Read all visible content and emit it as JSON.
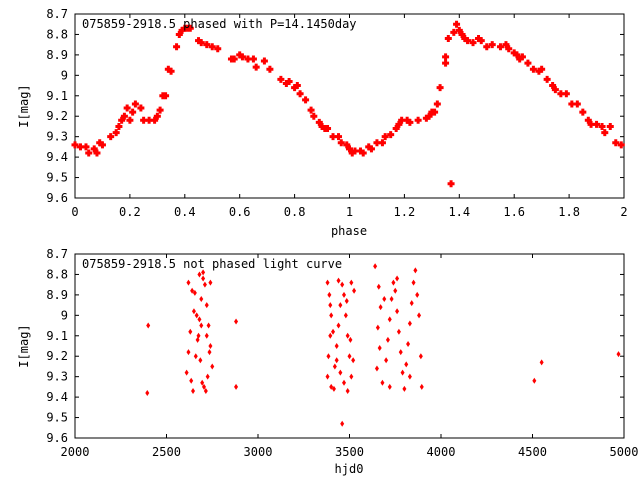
{
  "chart_data": [
    {
      "type": "scatter",
      "title": "075859-2918.5 phased with P=14.1450day",
      "xlabel": "phase",
      "ylabel": "I[mag]",
      "xlim": [
        0,
        2
      ],
      "ylim": [
        8.7,
        9.6
      ],
      "y_inverted": true,
      "x_ticks": [
        "0",
        "0.2",
        "0.4",
        "0.6",
        "0.8",
        "1",
        "1.2",
        "1.4",
        "1.6",
        "1.8",
        "2"
      ],
      "y_ticks": [
        "8.7",
        "8.8",
        "8.9",
        "9",
        "9.1",
        "9.2",
        "9.3",
        "9.4",
        "9.5",
        "9.6"
      ],
      "marker_color": "#ff0000",
      "grid": false,
      "points": [
        [
          0.0,
          9.34
        ],
        [
          0.02,
          9.35
        ],
        [
          0.04,
          9.35
        ],
        [
          0.05,
          9.38
        ],
        [
          0.07,
          9.36
        ],
        [
          0.08,
          9.38
        ],
        [
          0.09,
          9.33
        ],
        [
          0.1,
          9.34
        ],
        [
          0.13,
          9.3
        ],
        [
          0.15,
          9.28
        ],
        [
          0.16,
          9.25
        ],
        [
          0.17,
          9.22
        ],
        [
          0.18,
          9.2
        ],
        [
          0.19,
          9.16
        ],
        [
          0.2,
          9.22
        ],
        [
          0.21,
          9.18
        ],
        [
          0.22,
          9.14
        ],
        [
          0.24,
          9.16
        ],
        [
          0.25,
          9.22
        ],
        [
          0.27,
          9.22
        ],
        [
          0.29,
          9.22
        ],
        [
          0.3,
          9.2
        ],
        [
          0.31,
          9.17
        ],
        [
          0.32,
          9.1
        ],
        [
          0.33,
          9.1
        ],
        [
          0.34,
          8.97
        ],
        [
          0.35,
          8.98
        ],
        [
          0.37,
          8.86
        ],
        [
          0.38,
          8.8
        ],
        [
          0.39,
          8.78
        ],
        [
          0.4,
          8.77
        ],
        [
          0.41,
          8.77
        ],
        [
          0.42,
          8.77
        ],
        [
          0.45,
          8.83
        ],
        [
          0.46,
          8.84
        ],
        [
          0.48,
          8.85
        ],
        [
          0.5,
          8.86
        ],
        [
          0.52,
          8.87
        ],
        [
          0.57,
          8.92
        ],
        [
          0.58,
          8.92
        ],
        [
          0.6,
          8.9
        ],
        [
          0.61,
          8.91
        ],
        [
          0.63,
          8.92
        ],
        [
          0.65,
          8.92
        ],
        [
          0.66,
          8.96
        ],
        [
          0.69,
          8.93
        ],
        [
          0.71,
          8.97
        ],
        [
          0.75,
          9.02
        ],
        [
          0.77,
          9.04
        ],
        [
          0.78,
          9.03
        ],
        [
          0.8,
          9.06
        ],
        [
          0.81,
          9.05
        ],
        [
          0.82,
          9.09
        ],
        [
          0.84,
          9.12
        ],
        [
          0.86,
          9.17
        ],
        [
          0.87,
          9.2
        ],
        [
          0.89,
          9.23
        ],
        [
          0.9,
          9.25
        ],
        [
          0.91,
          9.26
        ],
        [
          0.92,
          9.26
        ],
        [
          0.94,
          9.3
        ],
        [
          0.96,
          9.3
        ],
        [
          0.97,
          9.33
        ],
        [
          0.99,
          9.34
        ],
        [
          1.0,
          9.36
        ],
        [
          1.01,
          9.38
        ],
        [
          1.02,
          9.37
        ],
        [
          1.04,
          9.37
        ],
        [
          1.05,
          9.38
        ],
        [
          1.07,
          9.35
        ],
        [
          1.08,
          9.36
        ],
        [
          1.1,
          9.33
        ],
        [
          1.12,
          9.33
        ],
        [
          1.13,
          9.3
        ],
        [
          1.15,
          9.29
        ],
        [
          1.17,
          9.26
        ],
        [
          1.18,
          9.24
        ],
        [
          1.19,
          9.22
        ],
        [
          1.21,
          9.22
        ],
        [
          1.22,
          9.23
        ],
        [
          1.25,
          9.22
        ],
        [
          1.28,
          9.21
        ],
        [
          1.29,
          9.2
        ],
        [
          1.3,
          9.18
        ],
        [
          1.31,
          9.18
        ],
        [
          1.32,
          9.14
        ],
        [
          1.33,
          9.06
        ],
        [
          1.35,
          8.94
        ],
        [
          1.35,
          8.91
        ],
        [
          1.36,
          8.82
        ],
        [
          1.37,
          9.53
        ],
        [
          1.38,
          8.79
        ],
        [
          1.39,
          8.75
        ],
        [
          1.4,
          8.78
        ],
        [
          1.41,
          8.8
        ],
        [
          1.42,
          8.82
        ],
        [
          1.43,
          8.83
        ],
        [
          1.45,
          8.84
        ],
        [
          1.47,
          8.82
        ],
        [
          1.48,
          8.83
        ],
        [
          1.5,
          8.86
        ],
        [
          1.52,
          8.85
        ],
        [
          1.55,
          8.86
        ],
        [
          1.57,
          8.85
        ],
        [
          1.58,
          8.87
        ],
        [
          1.6,
          8.89
        ],
        [
          1.61,
          8.9
        ],
        [
          1.62,
          8.92
        ],
        [
          1.63,
          8.91
        ],
        [
          1.65,
          8.94
        ],
        [
          1.67,
          8.97
        ],
        [
          1.69,
          8.98
        ],
        [
          1.7,
          8.97
        ],
        [
          1.72,
          9.02
        ],
        [
          1.74,
          9.05
        ],
        [
          1.75,
          9.07
        ],
        [
          1.77,
          9.09
        ],
        [
          1.79,
          9.09
        ],
        [
          1.81,
          9.14
        ],
        [
          1.83,
          9.14
        ],
        [
          1.85,
          9.18
        ],
        [
          1.87,
          9.22
        ],
        [
          1.88,
          9.24
        ],
        [
          1.9,
          9.24
        ],
        [
          1.92,
          9.25
        ],
        [
          1.93,
          9.28
        ],
        [
          1.95,
          9.25
        ],
        [
          1.97,
          9.33
        ],
        [
          1.99,
          9.34
        ]
      ]
    },
    {
      "type": "scatter",
      "title": "075859-2918.5 not phased light curve",
      "xlabel": "hjd0",
      "ylabel": "I[mag]",
      "xlim": [
        2000,
        5000
      ],
      "ylim": [
        8.7,
        9.6
      ],
      "y_inverted": true,
      "x_ticks": [
        "2000",
        "2500",
        "3000",
        "3500",
        "4000",
        "4500",
        "5000"
      ],
      "y_ticks": [
        "8.7",
        "8.8",
        "8.9",
        "9",
        "9.1",
        "9.2",
        "9.3",
        "9.4",
        "9.5",
        "9.6"
      ],
      "marker_color": "#ff0000",
      "grid": false,
      "points": [
        [
          2400,
          9.05
        ],
        [
          2395,
          9.38
        ],
        [
          2880,
          9.03
        ],
        [
          2880,
          9.35
        ],
        [
          4510,
          9.32
        ],
        [
          4550,
          9.23
        ],
        [
          4970,
          9.19
        ],
        [
          3460,
          9.53
        ],
        [
          2620,
          8.84
        ],
        [
          2640,
          8.88
        ],
        [
          2650,
          8.98
        ],
        [
          2630,
          9.08
        ],
        [
          2620,
          9.18
        ],
        [
          2610,
          9.28
        ],
        [
          2635,
          9.32
        ],
        [
          2660,
          9.2
        ],
        [
          2670,
          9.12
        ],
        [
          2680,
          9.02
        ],
        [
          2690,
          8.92
        ],
        [
          2700,
          8.82
        ],
        [
          2710,
          8.85
        ],
        [
          2720,
          8.95
        ],
        [
          2730,
          9.05
        ],
        [
          2740,
          9.15
        ],
        [
          2750,
          9.25
        ],
        [
          2705,
          9.35
        ],
        [
          2715,
          9.37
        ],
        [
          2725,
          9.3
        ],
        [
          2680,
          8.8
        ],
        [
          2700,
          8.79
        ],
        [
          2740,
          8.84
        ],
        [
          2655,
          8.89
        ],
        [
          2665,
          9.0
        ],
        [
          2675,
          9.1
        ],
        [
          2685,
          9.22
        ],
        [
          2695,
          9.33
        ],
        [
          2645,
          9.37
        ],
        [
          2720,
          9.1
        ],
        [
          2735,
          9.18
        ],
        [
          2690,
          9.05
        ],
        [
          3380,
          8.84
        ],
        [
          3390,
          8.9
        ],
        [
          3400,
          9.0
        ],
        [
          3395,
          9.1
        ],
        [
          3385,
          9.2
        ],
        [
          3380,
          9.3
        ],
        [
          3400,
          9.35
        ],
        [
          3420,
          9.25
        ],
        [
          3430,
          9.15
        ],
        [
          3440,
          9.05
        ],
        [
          3450,
          8.95
        ],
        [
          3460,
          8.85
        ],
        [
          3470,
          8.9
        ],
        [
          3480,
          9.0
        ],
        [
          3490,
          9.1
        ],
        [
          3500,
          9.2
        ],
        [
          3510,
          9.3
        ],
        [
          3520,
          9.22
        ],
        [
          3525,
          8.88
        ],
        [
          3510,
          8.84
        ],
        [
          3490,
          9.37
        ],
        [
          3470,
          9.33
        ],
        [
          3450,
          9.28
        ],
        [
          3430,
          9.22
        ],
        [
          3410,
          9.08
        ],
        [
          3395,
          8.95
        ],
        [
          3440,
          8.83
        ],
        [
          3485,
          8.93
        ],
        [
          3505,
          9.12
        ],
        [
          3415,
          9.36
        ],
        [
          3640,
          8.76
        ],
        [
          3660,
          8.86
        ],
        [
          3670,
          8.96
        ],
        [
          3655,
          9.06
        ],
        [
          3665,
          9.16
        ],
        [
          3650,
          9.26
        ],
        [
          3680,
          9.33
        ],
        [
          3700,
          9.22
        ],
        [
          3710,
          9.12
        ],
        [
          3720,
          9.02
        ],
        [
          3730,
          8.92
        ],
        [
          3740,
          8.84
        ],
        [
          3750,
          8.88
        ],
        [
          3760,
          8.98
        ],
        [
          3770,
          9.08
        ],
        [
          3780,
          9.18
        ],
        [
          3790,
          9.28
        ],
        [
          3800,
          9.36
        ],
        [
          3810,
          9.24
        ],
        [
          3820,
          9.14
        ],
        [
          3830,
          9.04
        ],
        [
          3840,
          8.94
        ],
        [
          3850,
          8.84
        ],
        [
          3860,
          8.78
        ],
        [
          3870,
          8.9
        ],
        [
          3880,
          9.0
        ],
        [
          3890,
          9.2
        ],
        [
          3895,
          9.35
        ],
        [
          3760,
          8.82
        ],
        [
          3720,
          9.35
        ],
        [
          3690,
          8.92
        ],
        [
          3830,
          9.3
        ]
      ]
    }
  ]
}
